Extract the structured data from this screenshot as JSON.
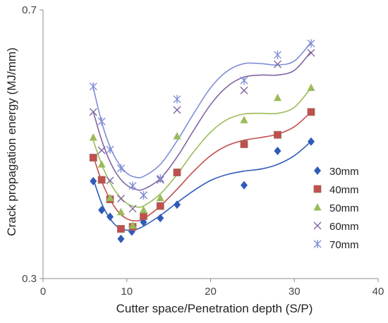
{
  "chart_data": {
    "type": "scatter",
    "xlabel": "Cutter space/Penetration depth (S/P)",
    "ylabel": "Crack propagation energy (MJ/mm)",
    "xlim": [
      0,
      40
    ],
    "ylim": [
      0.3,
      0.7
    ],
    "x_ticks": [
      "0",
      "10",
      "20",
      "30",
      "40"
    ],
    "y_ticks": [
      "0.3",
      "0.7"
    ],
    "grid": false,
    "legend_position": "right",
    "series": [
      {
        "name": "30mm",
        "marker": "diamond",
        "color": "#2f5bb7",
        "points": [
          [
            6,
            0.445
          ],
          [
            7,
            0.402
          ],
          [
            8,
            0.392
          ],
          [
            9.3,
            0.359
          ],
          [
            10.6,
            0.37
          ],
          [
            12,
            0.384
          ],
          [
            14,
            0.39
          ],
          [
            16,
            0.41
          ],
          [
            24,
            0.439
          ],
          [
            28,
            0.49
          ],
          [
            32,
            0.504
          ]
        ],
        "fit": [
          [
            6,
            0.448
          ],
          [
            7,
            0.412
          ],
          [
            8,
            0.389
          ],
          [
            9,
            0.376
          ],
          [
            10,
            0.372
          ],
          [
            11,
            0.373
          ],
          [
            12,
            0.378
          ],
          [
            14,
            0.394
          ],
          [
            16,
            0.413
          ],
          [
            18,
            0.431
          ],
          [
            20,
            0.446
          ],
          [
            22,
            0.455
          ],
          [
            24,
            0.46
          ],
          [
            26,
            0.463
          ],
          [
            28,
            0.47
          ],
          [
            30,
            0.483
          ],
          [
            32,
            0.504
          ]
        ]
      },
      {
        "name": "40mm",
        "marker": "square",
        "color": "#c0504d",
        "points": [
          [
            6,
            0.48
          ],
          [
            7,
            0.447
          ],
          [
            8,
            0.418
          ],
          [
            9.3,
            0.374
          ],
          [
            10.7,
            0.377
          ],
          [
            12,
            0.393
          ],
          [
            14,
            0.408
          ],
          [
            16,
            0.458
          ],
          [
            24,
            0.5
          ],
          [
            28,
            0.514
          ],
          [
            32,
            0.548
          ]
        ],
        "fit": [
          [
            6,
            0.482
          ],
          [
            7,
            0.445
          ],
          [
            8,
            0.418
          ],
          [
            9,
            0.399
          ],
          [
            10,
            0.389
          ],
          [
            11,
            0.386
          ],
          [
            12,
            0.389
          ],
          [
            14,
            0.408
          ],
          [
            16,
            0.433
          ],
          [
            18,
            0.46
          ],
          [
            20,
            0.483
          ],
          [
            22,
            0.498
          ],
          [
            24,
            0.506
          ],
          [
            26,
            0.51
          ],
          [
            28,
            0.515
          ],
          [
            30,
            0.526
          ],
          [
            32,
            0.548
          ]
        ]
      },
      {
        "name": "50mm",
        "marker": "triangle",
        "color": "#9bbb59",
        "points": [
          [
            6,
            0.51
          ],
          [
            7,
            0.47
          ],
          [
            8,
            0.42
          ],
          [
            9.3,
            0.399
          ],
          [
            10.7,
            0.379
          ],
          [
            12,
            0.402
          ],
          [
            14,
            0.42
          ],
          [
            16,
            0.512
          ],
          [
            24,
            0.536
          ],
          [
            28,
            0.569
          ],
          [
            32,
            0.584
          ]
        ],
        "fit": [
          [
            6,
            0.505
          ],
          [
            7,
            0.47
          ],
          [
            8,
            0.443
          ],
          [
            9,
            0.424
          ],
          [
            10,
            0.412
          ],
          [
            11,
            0.407
          ],
          [
            12,
            0.408
          ],
          [
            14,
            0.426
          ],
          [
            16,
            0.455
          ],
          [
            18,
            0.489
          ],
          [
            20,
            0.518
          ],
          [
            22,
            0.537
          ],
          [
            24,
            0.545
          ],
          [
            26,
            0.546
          ],
          [
            28,
            0.546
          ],
          [
            30,
            0.555
          ],
          [
            32,
            0.584
          ]
        ]
      },
      {
        "name": "60mm",
        "marker": "x",
        "color": "#8064a2",
        "points": [
          [
            6,
            0.548
          ],
          [
            7,
            0.491
          ],
          [
            8,
            0.446
          ],
          [
            9.3,
            0.419
          ],
          [
            10.7,
            0.404
          ],
          [
            12,
            0.424
          ],
          [
            14,
            0.447
          ],
          [
            16,
            0.551
          ],
          [
            24,
            0.58
          ],
          [
            28,
            0.619
          ],
          [
            32,
            0.636
          ]
        ],
        "fit": [
          [
            6,
            0.548
          ],
          [
            7,
            0.506
          ],
          [
            8,
            0.474
          ],
          [
            9,
            0.452
          ],
          [
            10,
            0.439
          ],
          [
            11,
            0.433
          ],
          [
            12,
            0.433
          ],
          [
            14,
            0.449
          ],
          [
            16,
            0.481
          ],
          [
            18,
            0.521
          ],
          [
            20,
            0.559
          ],
          [
            22,
            0.586
          ],
          [
            24,
            0.6
          ],
          [
            26,
            0.603
          ],
          [
            28,
            0.603
          ],
          [
            30,
            0.61
          ],
          [
            32,
            0.638
          ]
        ]
      },
      {
        "name": "70mm",
        "marker": "asterisk",
        "color": "#7f8fd6",
        "points": [
          [
            6,
            0.586
          ],
          [
            7,
            0.534
          ],
          [
            8,
            0.492
          ],
          [
            9.3,
            0.464
          ],
          [
            10.7,
            0.438
          ],
          [
            12,
            0.424
          ],
          [
            14,
            0.449
          ],
          [
            16,
            0.567
          ],
          [
            24,
            0.595
          ],
          [
            28,
            0.633
          ],
          [
            32,
            0.65
          ]
        ],
        "fit": [
          [
            6,
            0.584
          ],
          [
            7,
            0.533
          ],
          [
            8,
            0.496
          ],
          [
            9,
            0.472
          ],
          [
            10,
            0.457
          ],
          [
            11,
            0.451
          ],
          [
            12,
            0.452
          ],
          [
            14,
            0.47
          ],
          [
            16,
            0.505
          ],
          [
            18,
            0.546
          ],
          [
            20,
            0.584
          ],
          [
            22,
            0.609
          ],
          [
            24,
            0.62
          ],
          [
            26,
            0.62
          ],
          [
            28,
            0.618
          ],
          [
            30,
            0.624
          ],
          [
            32,
            0.652
          ]
        ]
      }
    ]
  }
}
